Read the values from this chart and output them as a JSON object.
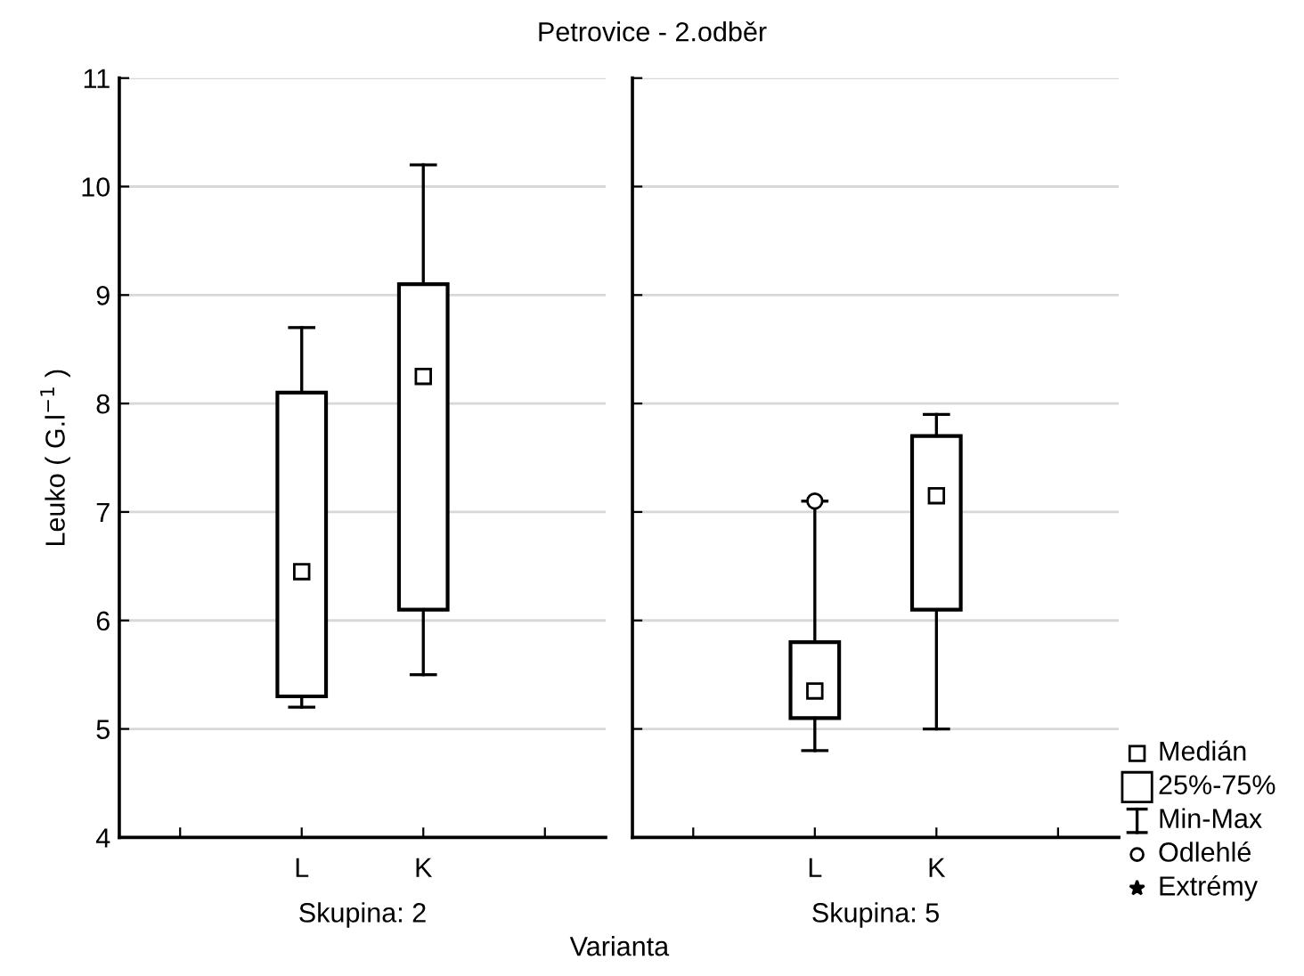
{
  "chart_data": [
    {
      "type": "box",
      "xlabel": "Skupina: 2",
      "ylabel": "Leuko ( G.l$^{−1}$ )",
      "categories": [
        "L",
        "K"
      ],
      "ylim": [
        4,
        11
      ],
      "yticks": [
        4,
        5,
        6,
        7,
        8,
        9,
        10,
        11
      ],
      "grid": "y",
      "annotations": [
        "Petrovice - 2.odběr",
        "Varianta"
      ],
      "boxes": [
        {
          "low": 5.2,
          "q1": 5.3,
          "median": 6.45,
          "q3": 8.1,
          "high": 8.7
        },
        {
          "low": 5.5,
          "q1": 6.1,
          "median": 8.25,
          "q3": 9.1,
          "high": 10.2
        }
      ]
    },
    {
      "type": "box",
      "xlabel": "Skupina: 5",
      "categories": [
        "L",
        "K"
      ],
      "ylim": [
        4,
        11
      ],
      "yticks": [
        4,
        5,
        6,
        7,
        8,
        9,
        10,
        11
      ],
      "grid": "y",
      "tick_labels": "x",
      "annotations": [
        "Medián",
        "25%-75%",
        "Min-Max",
        "Odlehlé",
        "Extrémy"
      ],
      "boxes": [
        {
          "low": 4.8,
          "q1": 5.1,
          "median": 5.35,
          "q3": 5.8,
          "high": 7.1,
          "outliers": [
            7.1
          ]
        },
        {
          "low": 5.0,
          "q1": 6.1,
          "median": 7.15,
          "q3": 7.7,
          "high": 7.9
        }
      ]
    }
  ]
}
